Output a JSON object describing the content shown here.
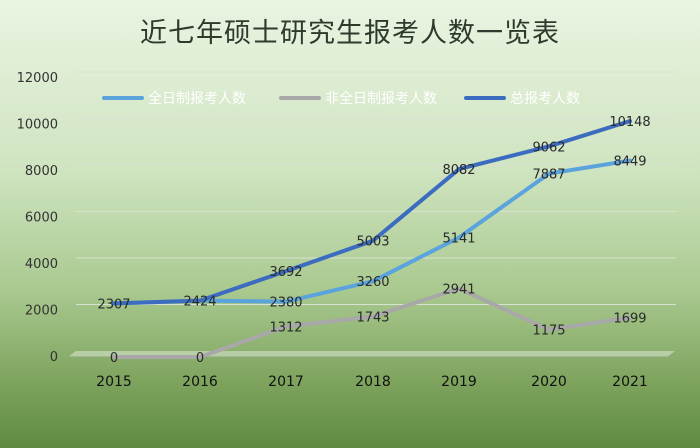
{
  "chart_data": {
    "type": "line",
    "title": "近七年硕士研究生报考人数一览表",
    "categories": [
      "2015",
      "2016",
      "2017",
      "2018",
      "2019",
      "2020",
      "2021"
    ],
    "ylim": [
      0,
      12000
    ],
    "yticks": [
      0,
      2000,
      4000,
      6000,
      8000,
      10000,
      12000
    ],
    "grid": true,
    "legend": "top",
    "series": [
      {
        "name": "全日制报考人数",
        "color": "#5aa3dc",
        "values": [
          2307,
          2424,
          2380,
          3260,
          5141,
          7887,
          8449
        ]
      },
      {
        "name": "非全日制报考人数",
        "color": "#a8a8a8",
        "values": [
          0,
          0,
          1312,
          1743,
          2941,
          1175,
          1699
        ]
      },
      {
        "name": "总报考人数",
        "color": "#3c6cc0",
        "values": [
          2307,
          2424,
          3692,
          5003,
          8082,
          9062,
          10148
        ]
      }
    ],
    "data_labels": [
      {
        "value": "2307",
        "category_index": 0,
        "y": 2307
      },
      {
        "value": "2424",
        "category_index": 1,
        "y": 2424
      },
      {
        "value": "2380",
        "category_index": 2,
        "y": 2380
      },
      {
        "value": "3260",
        "category_index": 3,
        "y": 3260
      },
      {
        "value": "5141",
        "category_index": 4,
        "y": 5141
      },
      {
        "value": "7887",
        "category_index": 5,
        "y": 7887
      },
      {
        "value": "8449",
        "category_index": 6,
        "y": 8449
      },
      {
        "value": "0",
        "category_index": 0,
        "y": 0
      },
      {
        "value": "0",
        "category_index": 1,
        "y": 0
      },
      {
        "value": "1312",
        "category_index": 2,
        "y": 1312
      },
      {
        "value": "1743",
        "category_index": 3,
        "y": 1743
      },
      {
        "value": "2941",
        "category_index": 4,
        "y": 2941
      },
      {
        "value": "1175",
        "category_index": 5,
        "y": 1175
      },
      {
        "value": "1699",
        "category_index": 6,
        "y": 1699
      },
      {
        "value": "3692",
        "category_index": 2,
        "y": 3692
      },
      {
        "value": "5003",
        "category_index": 3,
        "y": 5003
      },
      {
        "value": "8082",
        "category_index": 4,
        "y": 8082
      },
      {
        "value": "9062",
        "category_index": 5,
        "y": 9062
      },
      {
        "value": "10148",
        "category_index": 6,
        "y": 10148
      }
    ]
  }
}
